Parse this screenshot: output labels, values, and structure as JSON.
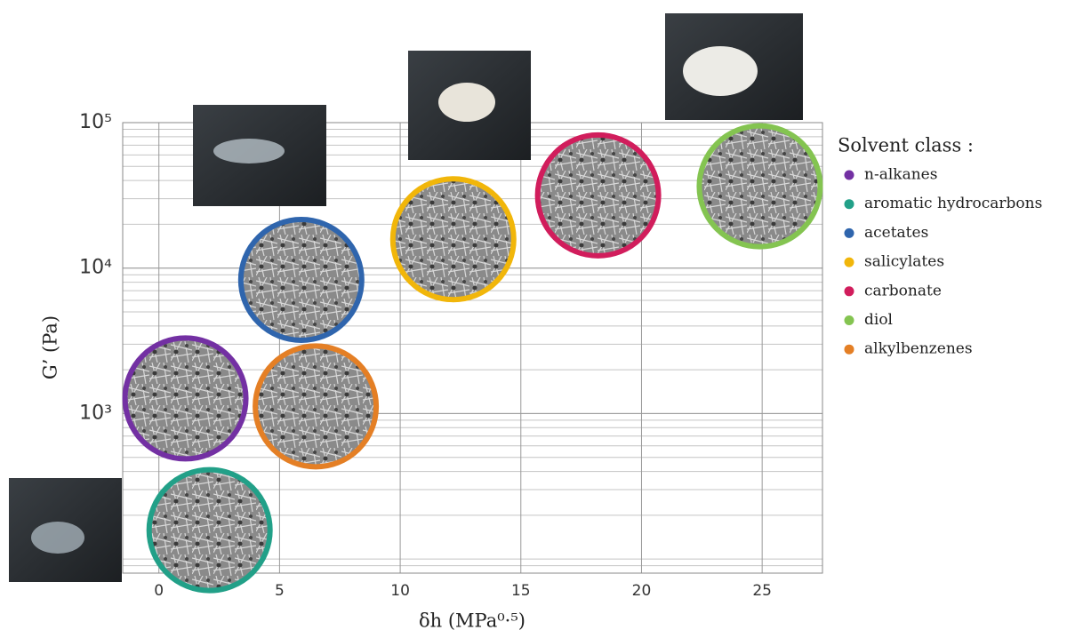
{
  "chart_data": {
    "type": "scatter",
    "xlabel": "δh (MPa⁰·⁵)",
    "ylabel": "G’ (Pa)",
    "legend_title": "Solvent class :",
    "xlim": [
      -1.5,
      27.5
    ],
    "xticks": [
      0,
      5,
      10,
      15,
      20,
      25
    ],
    "ylim": [
      80,
      100000
    ],
    "yticks": [
      {
        "value": 1000,
        "label": "10³"
      },
      {
        "value": 10000,
        "label": "10⁴"
      },
      {
        "value": 100000,
        "label": "10⁵"
      }
    ],
    "log_y": true,
    "grid": true,
    "minor_grid": true,
    "legend": "right",
    "series": [
      {
        "name": "n-alkanes",
        "color": "#7330a3",
        "x": [
          1.1
        ],
        "values": [
          1270
        ]
      },
      {
        "name": "aromatic hydrocarbons",
        "color": "#22a088",
        "x": [
          2.1
        ],
        "values": [
          158
        ]
      },
      {
        "name": "acetates",
        "color": "#2f65ad",
        "x": [
          5.9
        ],
        "values": [
          8300
        ]
      },
      {
        "name": "salicylates",
        "color": "#f1b60a",
        "x": [
          12.2
        ],
        "values": [
          15800
        ]
      },
      {
        "name": "carbonate",
        "color": "#d11d5c",
        "x": [
          18.2
        ],
        "values": [
          31600
        ]
      },
      {
        "name": "diol",
        "color": "#84c451",
        "x": [
          24.9
        ],
        "values": [
          36500
        ]
      },
      {
        "name": "alkylbenzenes",
        "color": "#e47f25",
        "x": [
          6.5
        ],
        "values": [
          1120
        ]
      }
    ]
  }
}
